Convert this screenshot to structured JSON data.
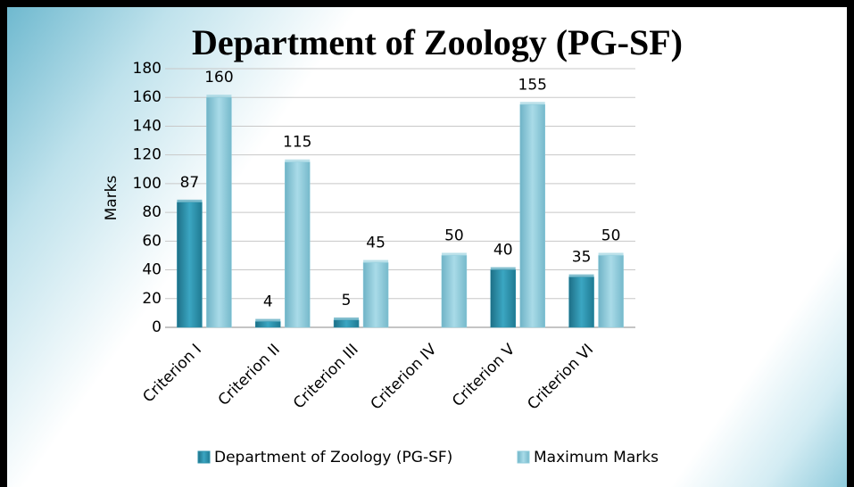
{
  "chart_data": {
    "type": "bar",
    "title": "Department of Zoology (PG-SF)",
    "y_label": "Marks",
    "categories": [
      "Criterion I",
      "Criterion II",
      "Criterion III",
      "Criterion IV",
      "Criterion V",
      "Criterion VI"
    ],
    "series": [
      {
        "name": "Department of Zoology (PG-SF)",
        "color": "#2e93ad",
        "values": [
          87,
          4,
          5,
          null,
          40,
          35
        ]
      },
      {
        "name": "Maximum Marks",
        "color": "#8ccbdb",
        "values": [
          160,
          115,
          45,
          50,
          155,
          50
        ]
      }
    ],
    "ylim": [
      0,
      180
    ],
    "yticks": [
      0,
      20,
      40,
      60,
      80,
      100,
      120,
      140,
      160,
      180
    ],
    "grid": true,
    "legend": "bottom"
  }
}
